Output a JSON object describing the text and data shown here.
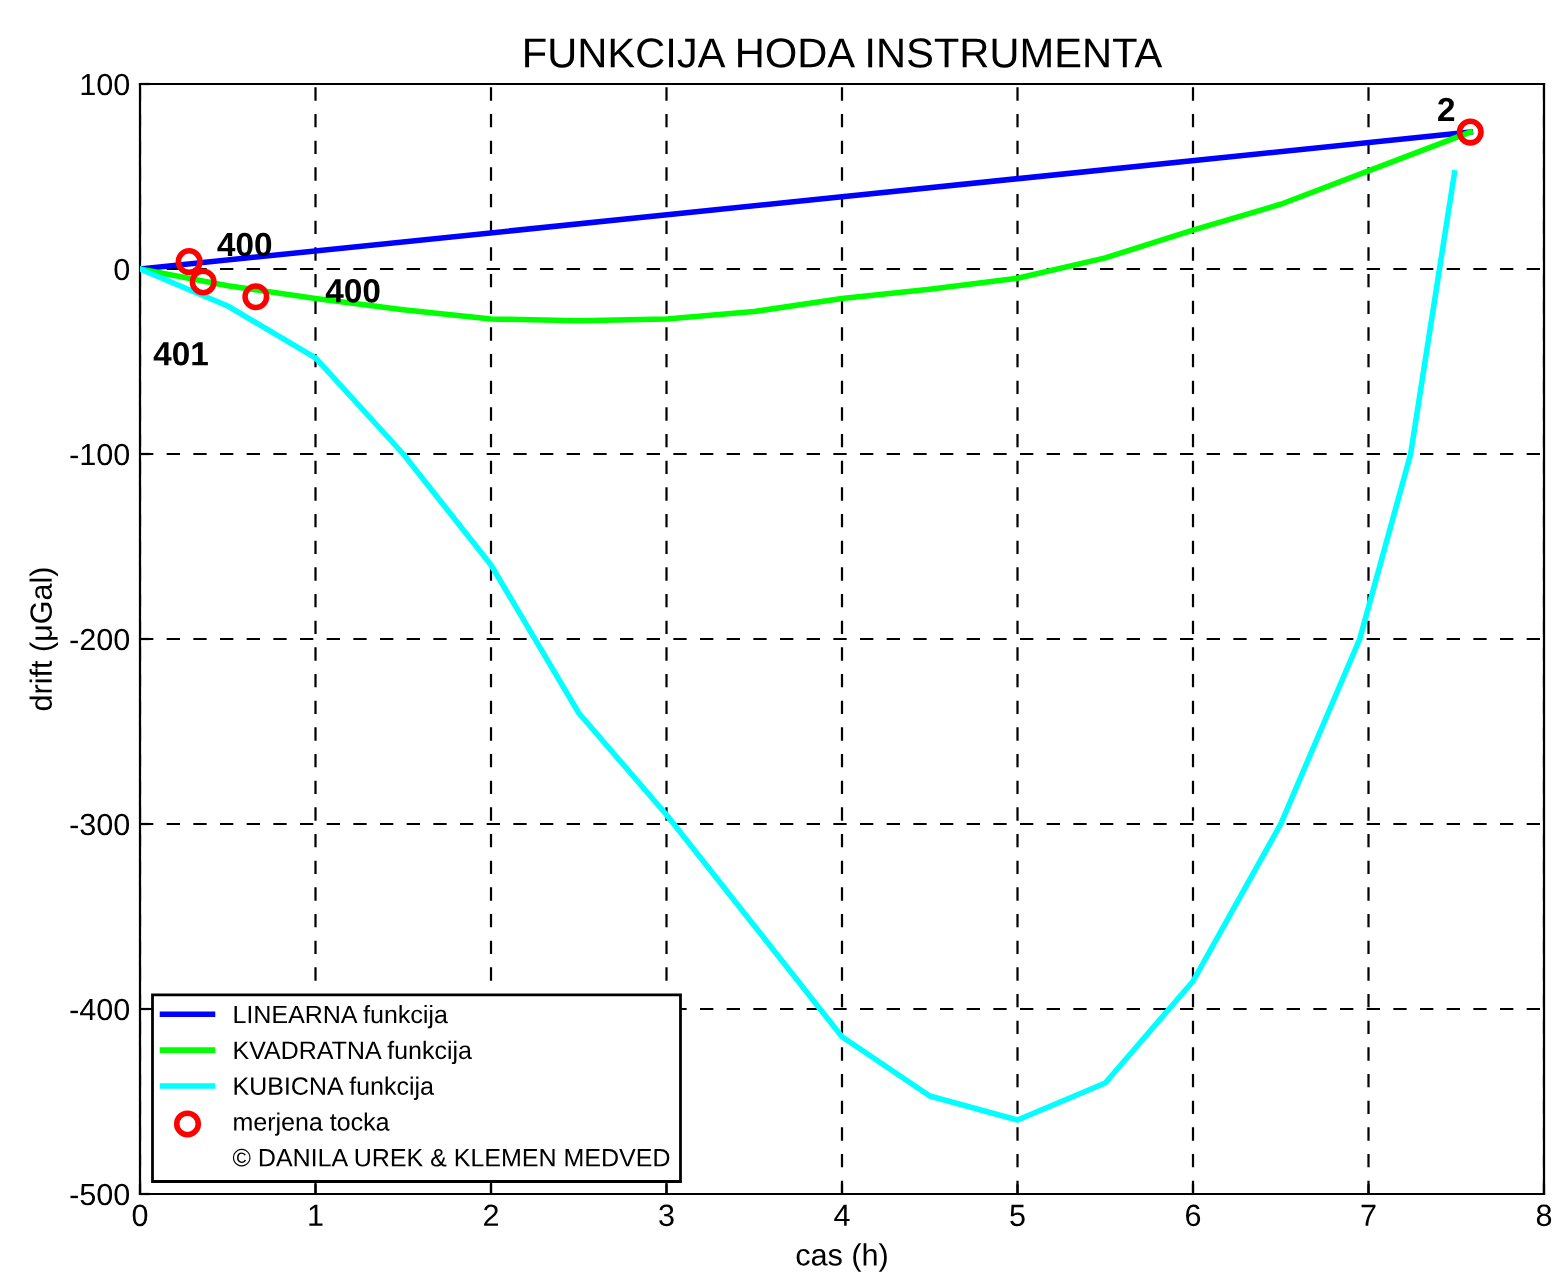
{
  "chart_data": {
    "type": "line",
    "title": "FUNKCIJA HODA INSTRUMENTA",
    "xlabel": "cas (h)",
    "ylabel": "drift (μGal)",
    "xlim": [
      0,
      8
    ],
    "ylim": [
      -500,
      100
    ],
    "xticks": [
      0,
      1,
      2,
      3,
      4,
      5,
      6,
      7,
      8
    ],
    "yticks": [
      -500,
      -400,
      -300,
      -200,
      -100,
      0,
      100
    ],
    "grid": true,
    "legend": "bottom left",
    "line_style": "solid",
    "series": [
      {
        "name": "LINEARNA funkcija",
        "color": "#0000ff",
        "x": [
          0,
          7.58
        ],
        "values": [
          0,
          74
        ]
      },
      {
        "name": "KVADRATNA funkcija",
        "color": "#00ff00",
        "x": [
          0,
          0.5,
          1,
          1.5,
          2,
          2.5,
          3,
          3.5,
          4,
          4.5,
          5,
          5.5,
          6,
          6.5,
          7,
          7.58
        ],
        "values": [
          0,
          -9,
          -16,
          -22,
          -27,
          -28,
          -27,
          -23,
          -16,
          -11,
          -5,
          6,
          21,
          35,
          53,
          74
        ]
      },
      {
        "name": "KUBICNA funkcija",
        "color": "#00ffff",
        "x": [
          0,
          0.5,
          1,
          1.5,
          2,
          2.5,
          3,
          3.5,
          4,
          4.5,
          5,
          5.5,
          6,
          6.5,
          6.95,
          7.24,
          7.49
        ],
        "values": [
          0,
          -20,
          -48,
          -100,
          -160,
          -240,
          -295,
          -355,
          -415,
          -447,
          -460,
          -440,
          -385,
          -300,
          -200,
          -100,
          52
        ]
      },
      {
        "name": "merjena tocka",
        "color": "#ff0000",
        "type": "scatter",
        "marker": "circle",
        "x": [
          0.28,
          0.36,
          0.66,
          7.58
        ],
        "values": [
          4,
          -7,
          -15,
          74
        ]
      }
    ],
    "annotations": [
      {
        "text": "400",
        "x": 0.28,
        "y": 4
      },
      {
        "text": "401",
        "x": 0.36,
        "y": -7
      },
      {
        "text": "400",
        "x": 0.66,
        "y": -15
      },
      {
        "text": "2",
        "x": 7.58,
        "y": 74
      },
      "© DANILA UREK & KLEMEN MEDVED"
    ]
  }
}
